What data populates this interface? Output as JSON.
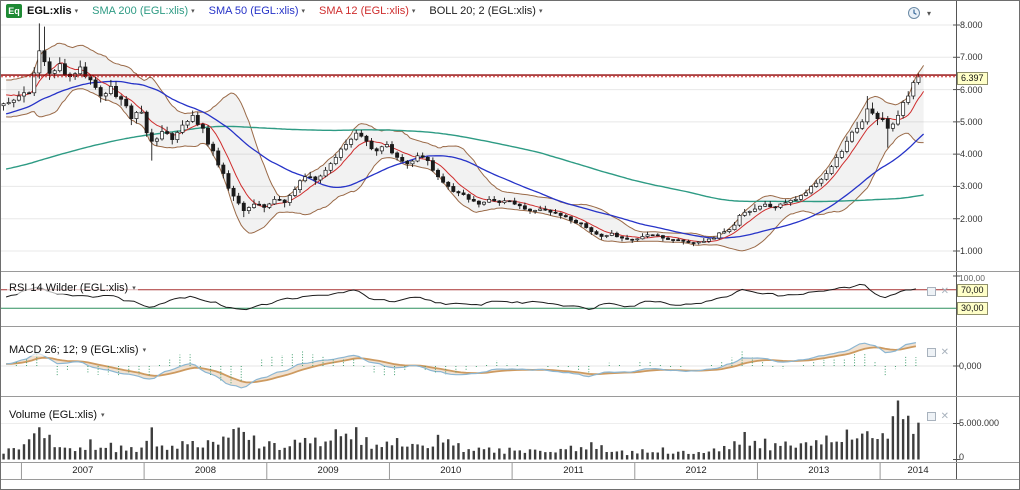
{
  "legend": {
    "instrument_icon_label": "Eq",
    "instrument": "EGL:xlis",
    "indicators": [
      {
        "id": "sma200",
        "label": "SMA 200 (EGL:xlis)",
        "color": "#2e9b84"
      },
      {
        "id": "sma50",
        "label": "SMA 50 (EGL:xlis)",
        "color": "#2633c8"
      },
      {
        "id": "sma12",
        "label": "SMA 12 (EGL:xlis)",
        "color": "#cf2e2e"
      },
      {
        "id": "boll",
        "label": "BOLL 20; 2 (EGL:xlis)",
        "color": "#1d1d1d"
      }
    ]
  },
  "icons": {
    "caret_down": "▾",
    "close_glyph": "✕"
  },
  "price_panel": {
    "y_axis_labels": [
      {
        "value": 8000,
        "label": "8.000"
      },
      {
        "value": 7000,
        "label": "7.000"
      },
      {
        "value": 6000,
        "label": "6.000"
      },
      {
        "value": 5000,
        "label": "5.000"
      },
      {
        "value": 4000,
        "label": "4.000"
      },
      {
        "value": 3000,
        "label": "3.000"
      },
      {
        "value": 2000,
        "label": "2.000"
      },
      {
        "value": 1000,
        "label": "1.000"
      }
    ],
    "alert_line": {
      "value": 6450,
      "color": "#8f0000"
    },
    "last_price": {
      "value": 6397,
      "label": "6.397",
      "badge_color": "#ffffc8"
    },
    "band_color": "#9a6a48"
  },
  "rsi_panel": {
    "title": "RSI 14 Wilder (EGL:xlis)",
    "top_label": "100,00",
    "levels": [
      {
        "value": 70,
        "label": "70,00",
        "color": "#a83232"
      },
      {
        "value": 30,
        "label": "30,00",
        "color": "#2e8f5f"
      }
    ]
  },
  "macd_panel": {
    "title": "MACD 26; 12; 9 (EGL:xlis)",
    "zero_label": "0,000"
  },
  "volume_panel": {
    "title": "Volume (EGL:xlis)",
    "axis_labels": [
      {
        "value": 5000000,
        "label": "5.000.000"
      },
      {
        "value": 0,
        "label": "0"
      }
    ]
  },
  "x_axis": {
    "years": [
      "2007",
      "2008",
      "2009",
      "2010",
      "2011",
      "2012",
      "2013",
      "2014"
    ]
  },
  "chart_data": {
    "type": "candlestick",
    "instrument": "EGL:xlis",
    "interval": "monthly",
    "start": "2006-11",
    "end": "2014-04",
    "ylim": [
      1000,
      8000
    ],
    "last_price": 6397,
    "alert_level": 6450,
    "rsi_levels": [
      70,
      30
    ],
    "overlays": [
      "SMA 200",
      "SMA 50",
      "SMA 12",
      "BOLL 20; 2"
    ],
    "year_boundaries": [
      2,
      14,
      26,
      38,
      50,
      62,
      74,
      86
    ],
    "monthly": {
      "close": [
        5600,
        5800,
        5900,
        7200,
        6500,
        6800,
        6400,
        6700,
        6300,
        5800,
        6100,
        5700,
        5100,
        5300,
        4400,
        4700,
        4450,
        4900,
        5200,
        4800,
        4100,
        3400,
        2700,
        2250,
        2450,
        2350,
        2600,
        2500,
        2900,
        3300,
        3200,
        3500,
        3900,
        4300,
        4650,
        4400,
        4100,
        4300,
        3900,
        3700,
        3950,
        3800,
        3300,
        3000,
        2800,
        2600,
        2450,
        2600,
        2500,
        2550,
        2400,
        2250,
        2300,
        2200,
        2100,
        1950,
        1850,
        1600,
        1450,
        1550,
        1400,
        1350,
        1450,
        1500,
        1400,
        1350,
        1300,
        1250,
        1300,
        1400,
        1600,
        1800,
        2200,
        2300,
        2450,
        2350,
        2500,
        2600,
        2800,
        3100,
        3400,
        3900,
        4400,
        4800,
        5400,
        5100,
        4800,
        5200,
        5800,
        6397
      ],
      "high": [
        5750,
        5950,
        6100,
        8050,
        7950,
        7000,
        6950,
        6900,
        6850,
        6400,
        6300,
        6250,
        5800,
        5500,
        5350,
        4900,
        4850,
        5050,
        5350,
        5300,
        4900,
        4200,
        3500,
        2800,
        2600,
        2550,
        2700,
        2700,
        3000,
        3400,
        3450,
        3600,
        4000,
        4450,
        4750,
        4750,
        4500,
        4400,
        4400,
        4000,
        4050,
        4050,
        3900,
        3400,
        3100,
        2900,
        2700,
        2700,
        2700,
        2650,
        2650,
        2500,
        2400,
        2400,
        2300,
        2150,
        2000,
        1900,
        1650,
        1650,
        1600,
        1500,
        1550,
        1600,
        1550,
        1450,
        1400,
        1350,
        1400,
        1450,
        1700,
        1900,
        2300,
        2450,
        2550,
        2550,
        2600,
        2700,
        2900,
        3200,
        3500,
        4000,
        4550,
        5000,
        5800,
        5600,
        5300,
        5350,
        5950,
        6500
      ],
      "low": [
        5350,
        5450,
        5600,
        5800,
        6300,
        6350,
        6250,
        6300,
        6150,
        5600,
        5650,
        5500,
        4900,
        4950,
        3800,
        4250,
        4300,
        4350,
        4800,
        4650,
        3950,
        3250,
        2550,
        2050,
        2150,
        2200,
        2300,
        2350,
        2400,
        2800,
        3050,
        3100,
        3400,
        3800,
        4200,
        4250,
        3950,
        4000,
        3800,
        3550,
        3600,
        3650,
        3200,
        2900,
        2700,
        2500,
        2350,
        2400,
        2400,
        2450,
        2300,
        2150,
        2150,
        2100,
        2000,
        1850,
        1750,
        1500,
        1350,
        1400,
        1300,
        1250,
        1300,
        1400,
        1300,
        1250,
        1200,
        1150,
        1200,
        1250,
        1350,
        1550,
        1750,
        2100,
        2250,
        2250,
        2300,
        2400,
        2550,
        2750,
        3000,
        3350,
        3850,
        4350,
        4750,
        4900,
        4200,
        4700,
        5100,
        5700
      ],
      "volume_millions": [
        1.2,
        1.5,
        2.2,
        3.8,
        3.0,
        2.0,
        1.8,
        1.6,
        2.0,
        1.5,
        1.8,
        1.4,
        1.9,
        1.5,
        3.2,
        2.2,
        1.8,
        2.0,
        2.4,
        1.7,
        2.6,
        2.8,
        3.5,
        4.2,
        2.6,
        1.8,
        2.4,
        1.9,
        2.8,
        3.4,
        2.4,
        2.6,
        3.0,
        3.2,
        3.6,
        2.6,
        2.2,
        2.0,
        2.4,
        1.8,
        2.2,
        1.9,
        2.6,
        2.2,
        1.8,
        1.6,
        1.4,
        1.6,
        1.3,
        1.2,
        1.4,
        1.2,
        1.3,
        1.1,
        1.2,
        1.4,
        1.3,
        1.8,
        1.5,
        1.3,
        1.2,
        1.0,
        1.3,
        1.1,
        1.2,
        0.9,
        1.0,
        0.9,
        1.1,
        1.2,
        1.6,
        1.9,
        2.8,
        2.0,
        2.2,
        1.7,
        1.9,
        1.8,
        2.1,
        2.3,
        2.5,
        2.8,
        3.2,
        3.4,
        4.0,
        3.0,
        3.5,
        7.0,
        5.6,
        4.4
      ]
    },
    "rsi_points": [
      [
        0,
        55
      ],
      [
        3,
        76
      ],
      [
        5,
        62
      ],
      [
        8,
        55
      ],
      [
        10,
        58
      ],
      [
        12,
        46
      ],
      [
        14,
        34
      ],
      [
        17,
        52
      ],
      [
        18,
        56
      ],
      [
        20,
        44
      ],
      [
        22,
        31
      ],
      [
        23,
        26
      ],
      [
        25,
        38
      ],
      [
        28,
        52
      ],
      [
        31,
        58
      ],
      [
        34,
        68
      ],
      [
        36,
        50
      ],
      [
        38,
        44
      ],
      [
        40,
        53
      ],
      [
        43,
        40
      ],
      [
        46,
        37
      ],
      [
        48,
        46
      ],
      [
        50,
        42
      ],
      [
        52,
        44
      ],
      [
        55,
        36
      ],
      [
        57,
        29
      ],
      [
        59,
        42
      ],
      [
        61,
        34
      ],
      [
        63,
        46
      ],
      [
        66,
        37
      ],
      [
        68,
        42
      ],
      [
        70,
        52
      ],
      [
        71,
        60
      ],
      [
        72,
        70
      ],
      [
        74,
        63
      ],
      [
        76,
        57
      ],
      [
        78,
        62
      ],
      [
        80,
        68
      ],
      [
        82,
        74
      ],
      [
        84,
        81
      ],
      [
        85,
        60
      ],
      [
        86,
        54
      ],
      [
        88,
        68
      ],
      [
        89,
        74
      ]
    ],
    "macd_points": [
      [
        0,
        0.06
      ],
      [
        2,
        0.25
      ],
      [
        3,
        0.5
      ],
      [
        4,
        0.3
      ],
      [
        5,
        0.1
      ],
      [
        7,
        0.15
      ],
      [
        9,
        -0.1
      ],
      [
        12,
        -0.3
      ],
      [
        14,
        -0.5
      ],
      [
        16,
        -0.15
      ],
      [
        18,
        0.1
      ],
      [
        20,
        -0.3
      ],
      [
        22,
        -0.7
      ],
      [
        23,
        -0.8
      ],
      [
        25,
        -0.45
      ],
      [
        27,
        -0.2
      ],
      [
        29,
        0.1
      ],
      [
        32,
        0.25
      ],
      [
        34,
        0.38
      ],
      [
        36,
        0.1
      ],
      [
        38,
        -0.08
      ],
      [
        40,
        0.02
      ],
      [
        42,
        -0.2
      ],
      [
        44,
        -0.32
      ],
      [
        46,
        -0.28
      ],
      [
        48,
        -0.12
      ],
      [
        50,
        -0.12
      ],
      [
        52,
        -0.14
      ],
      [
        55,
        -0.25
      ],
      [
        57,
        -0.38
      ],
      [
        59,
        -0.22
      ],
      [
        61,
        -0.22
      ],
      [
        63,
        -0.1
      ],
      [
        65,
        -0.16
      ],
      [
        67,
        -0.2
      ],
      [
        69,
        -0.12
      ],
      [
        71,
        0.08
      ],
      [
        72,
        0.3
      ],
      [
        74,
        0.28
      ],
      [
        76,
        0.14
      ],
      [
        78,
        0.24
      ],
      [
        80,
        0.4
      ],
      [
        82,
        0.55
      ],
      [
        84,
        0.85
      ],
      [
        85,
        0.75
      ],
      [
        86,
        0.5
      ],
      [
        87,
        0.55
      ],
      [
        88,
        0.8
      ],
      [
        89,
        0.85
      ]
    ]
  }
}
